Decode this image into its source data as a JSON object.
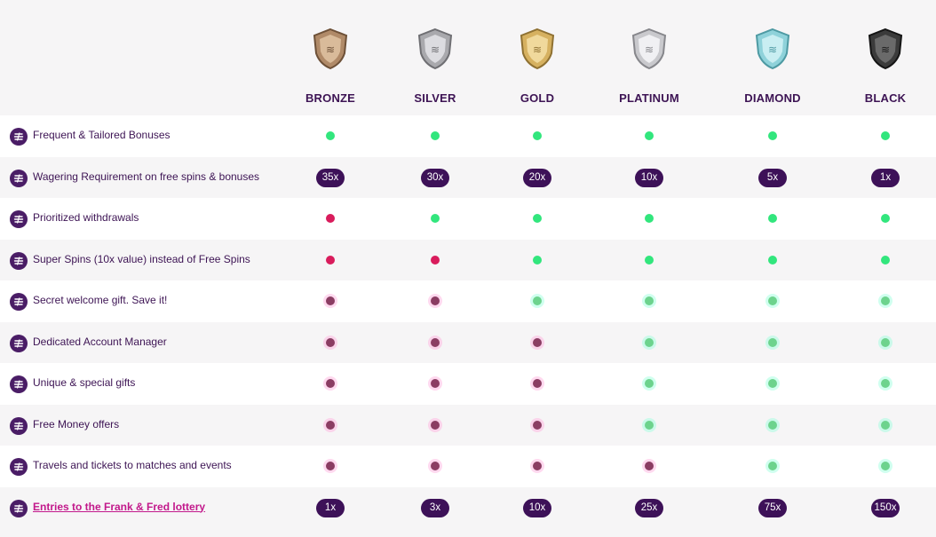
{
  "tiers": [
    {
      "name": "BRONZE",
      "color": "#b08a68"
    },
    {
      "name": "SILVER",
      "color": "#a9a9ad"
    },
    {
      "name": "GOLD",
      "color": "#d6b160"
    },
    {
      "name": "PLATINUM",
      "color": "#c9c9cd"
    },
    {
      "name": "DIAMOND",
      "color": "#8fd2da"
    },
    {
      "name": "BLACK",
      "color": "#3b3b3b"
    }
  ],
  "rows": [
    {
      "label": "Frequent & Tailored Bonuses",
      "type": "dots",
      "values": [
        "green",
        "green",
        "green",
        "green",
        "green",
        "green"
      ]
    },
    {
      "label": "Wagering Requirement on free spins & bonuses",
      "type": "pills",
      "values": [
        "35x",
        "30x",
        "20x",
        "10x",
        "5x",
        "1x"
      ]
    },
    {
      "label": "Prioritized withdrawals",
      "type": "dots",
      "values": [
        "red",
        "green",
        "green",
        "green",
        "green",
        "green"
      ]
    },
    {
      "label": "Super Spins (10x value) instead of Free Spins",
      "type": "dots",
      "values": [
        "red",
        "red",
        "green",
        "green",
        "green",
        "green"
      ]
    },
    {
      "label": "Secret welcome gift. Save it!",
      "type": "dots",
      "values": [
        "locked-red",
        "locked-red",
        "locked-green",
        "locked-green",
        "locked-green",
        "locked-green"
      ]
    },
    {
      "label": "Dedicated Account Manager",
      "type": "dots",
      "values": [
        "locked-red",
        "locked-red",
        "locked-red",
        "locked-green",
        "locked-green",
        "locked-green"
      ]
    },
    {
      "label": "Unique & special gifts",
      "type": "dots",
      "values": [
        "locked-red",
        "locked-red",
        "locked-red",
        "locked-green",
        "locked-green",
        "locked-green"
      ]
    },
    {
      "label": "Free Money offers",
      "type": "dots",
      "values": [
        "locked-red",
        "locked-red",
        "locked-red",
        "locked-green",
        "locked-green",
        "locked-green"
      ]
    },
    {
      "label": "Travels and tickets to matches and events",
      "type": "dots",
      "values": [
        "locked-red",
        "locked-red",
        "locked-red",
        "locked-red",
        "locked-green",
        "locked-green"
      ]
    },
    {
      "label": "Entries to the Frank & Fred lottery",
      "type": "pills",
      "link": true,
      "values": [
        "1x",
        "3x",
        "10x",
        "25x",
        "75x",
        "150x"
      ]
    }
  ]
}
